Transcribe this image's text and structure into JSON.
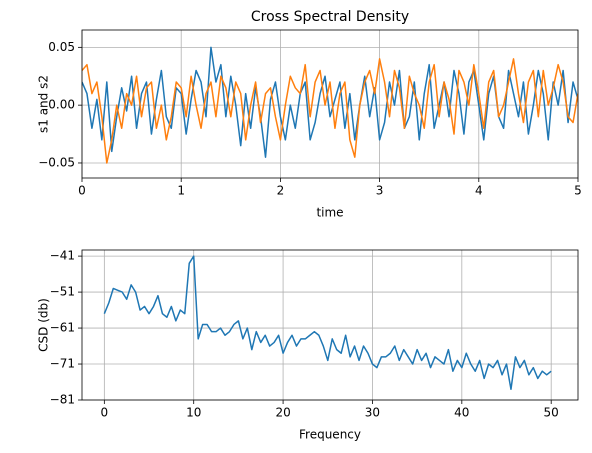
{
  "chart_data": [
    {
      "type": "line",
      "title": "Cross Spectral Density",
      "xlabel": "time",
      "ylabel": "s1 and s2",
      "x": [
        0,
        0.05,
        0.1,
        0.15,
        0.2,
        0.25,
        0.3,
        0.35,
        0.4,
        0.45,
        0.5,
        0.55,
        0.6,
        0.65,
        0.7,
        0.75,
        0.8,
        0.85,
        0.9,
        0.95,
        1,
        1.05,
        1.1,
        1.15,
        1.2,
        1.25,
        1.3,
        1.35,
        1.4,
        1.45,
        1.5,
        1.55,
        1.6,
        1.65,
        1.7,
        1.75,
        1.8,
        1.85,
        1.9,
        1.95,
        2,
        2.05,
        2.1,
        2.15,
        2.2,
        2.25,
        2.3,
        2.35,
        2.4,
        2.45,
        2.5,
        2.55,
        2.6,
        2.65,
        2.7,
        2.75,
        2.8,
        2.85,
        2.9,
        2.95,
        3,
        3.05,
        3.1,
        3.15,
        3.2,
        3.25,
        3.3,
        3.35,
        3.4,
        3.45,
        3.5,
        3.55,
        3.6,
        3.65,
        3.7,
        3.75,
        3.8,
        3.85,
        3.9,
        3.95,
        4,
        4.05,
        4.1,
        4.15,
        4.2,
        4.25,
        4.3,
        4.35,
        4.4,
        4.45,
        4.5,
        4.55,
        4.6,
        4.65,
        4.7,
        4.75,
        4.8,
        4.85,
        4.9,
        4.95,
        5
      ],
      "series": [
        {
          "color": "#1f77b4",
          "values": [
            0.02,
            0.01,
            -0.02,
            0.005,
            -0.03,
            0.02,
            -0.04,
            -0.01,
            0.015,
            -0.005,
            0.025,
            -0.02,
            0.01,
            0.02,
            -0.025,
            0.005,
            0.03,
            -0.01,
            -0.02,
            0.015,
            0.01,
            -0.025,
            0.005,
            0.03,
            0.02,
            -0.01,
            0.05,
            0.02,
            0.035,
            -0.01,
            0.025,
            0.0,
            -0.035,
            0.01,
            -0.02,
            0.015,
            -0.01,
            -0.045,
            0.005,
            0.02,
            -0.01,
            -0.03,
            0.0,
            -0.02,
            0.01,
            0.02,
            -0.03,
            -0.015,
            0.01,
            0.025,
            -0.01,
            0.005,
            0.02,
            -0.02,
            0.01,
            -0.03,
            0.0,
            0.025,
            -0.01,
            0.015,
            -0.03,
            -0.015,
            0.02,
            0.0,
            0.03,
            -0.02,
            -0.01,
            0.02,
            -0.03,
            0.01,
            0.035,
            -0.02,
            0.0,
            0.02,
            -0.01,
            0.03,
            0.01,
            -0.025,
            0.02,
            0.03,
            0.0,
            -0.03,
            0.01,
            0.025,
            -0.01,
            -0.02,
            0.03,
            0.01,
            -0.01,
            0.02,
            -0.025,
            0.0,
            0.03,
            0.01,
            -0.03,
            0.02,
            0.0,
            0.03,
            -0.015,
            0.02,
            0.005
          ]
        },
        {
          "color": "#ff7f0e",
          "values": [
            0.03,
            0.035,
            0.01,
            0.02,
            -0.01,
            -0.05,
            -0.03,
            0.0,
            -0.02,
            0.01,
            0.0,
            0.025,
            -0.01,
            0.015,
            0.02,
            -0.02,
            0.0,
            -0.03,
            -0.01,
            0.02,
            0.015,
            -0.01,
            0.025,
            0.0,
            -0.02,
            0.01,
            0.02,
            -0.01,
            0.025,
            0.015,
            -0.01,
            0.02,
            0.01,
            -0.03,
            0.0,
            0.02,
            -0.015,
            0.01,
            0.015,
            -0.01,
            -0.03,
            0.0,
            0.025,
            0.015,
            0.01,
            0.035,
            -0.01,
            0.02,
            0.03,
            0.0,
            0.02,
            -0.02,
            0.01,
            0.02,
            -0.03,
            -0.045,
            0.0,
            0.02,
            0.03,
            0.01,
            0.04,
            0.02,
            -0.01,
            0.03,
            0.015,
            -0.02,
            0.025,
            0.01,
            0.0,
            -0.02,
            0.02,
            0.035,
            -0.01,
            0.02,
            0.005,
            -0.025,
            0.03,
            0.02,
            0.0,
            0.035,
            0.01,
            -0.02,
            0.02,
            0.03,
            -0.01,
            0.0,
            0.02,
            0.04,
            0.01,
            -0.015,
            0.02,
            0.03,
            -0.01,
            0.03,
            0.0,
            0.015,
            0.035,
            0.02,
            -0.01,
            -0.015,
            0.01
          ]
        }
      ],
      "xlim": [
        0,
        5
      ],
      "xticks": [
        0,
        1,
        2,
        3,
        4,
        5
      ],
      "ylim": [
        -0.063,
        0.065
      ],
      "yticks": [
        {
          "value": -0.05,
          "label": "−0.05"
        },
        {
          "value": 0,
          "label": "0.00"
        },
        {
          "value": 0.05,
          "label": "0.05"
        }
      ],
      "grid": true
    },
    {
      "type": "line",
      "xlabel": "Frequency",
      "ylabel": "CSD (db)",
      "x": [
        0,
        0.5,
        1,
        1.5,
        2,
        2.5,
        3,
        3.5,
        4,
        4.5,
        5,
        5.5,
        6,
        6.5,
        7,
        7.5,
        8,
        8.5,
        9,
        9.5,
        10,
        10.5,
        11,
        11.5,
        12,
        12.5,
        13,
        13.5,
        14,
        14.5,
        15,
        15.5,
        16,
        16.5,
        17,
        17.5,
        18,
        18.5,
        19,
        19.5,
        20,
        20.5,
        21,
        21.5,
        22,
        22.5,
        23,
        23.5,
        24,
        24.5,
        25,
        25.5,
        26,
        26.5,
        27,
        27.5,
        28,
        28.5,
        29,
        29.5,
        30,
        30.5,
        31,
        31.5,
        32,
        32.5,
        33,
        33.5,
        34,
        34.5,
        35,
        35.5,
        36,
        36.5,
        37,
        37.5,
        38,
        38.5,
        39,
        39.5,
        40,
        40.5,
        41,
        41.5,
        42,
        42.5,
        43,
        43.5,
        44,
        44.5,
        45,
        45.5,
        46,
        46.5,
        47,
        47.5,
        48,
        48.5,
        49,
        49.5,
        50
      ],
      "series": [
        {
          "color": "#1f77b4",
          "values": [
            -57,
            -54,
            -50,
            -50.5,
            -51,
            -53,
            -49,
            -51,
            -56,
            -55,
            -57,
            -55,
            -52,
            -57,
            -58,
            -55,
            -59,
            -56,
            -57,
            -43,
            -41,
            -64,
            -60,
            -60,
            -62,
            -62,
            -61,
            -63,
            -62,
            -60,
            -59,
            -64,
            -61,
            -67,
            -62,
            -65,
            -63,
            -66,
            -65,
            -63,
            -68,
            -65,
            -63,
            -66,
            -64,
            -64,
            -63,
            -62,
            -63,
            -66,
            -70,
            -64,
            -67,
            -68,
            -63,
            -69,
            -66,
            -70,
            -66,
            -68,
            -71,
            -72,
            -69,
            -69,
            -68,
            -66,
            -70,
            -67,
            -69,
            -71,
            -67,
            -70,
            -68,
            -72,
            -69,
            -70,
            -71,
            -67,
            -73,
            -70,
            -72,
            -68,
            -71,
            -73,
            -70,
            -75,
            -71,
            -72,
            -70,
            -74,
            -71,
            -78,
            -69,
            -72,
            -70,
            -74,
            -72,
            -75,
            -73,
            -74,
            -73
          ]
        }
      ],
      "xlim": [
        -2.5,
        53
      ],
      "xticks": [
        0,
        10,
        20,
        30,
        40,
        50
      ],
      "ylim": [
        -81,
        -39.3
      ],
      "yticks": [
        {
          "value": -81,
          "label": "−81"
        },
        {
          "value": -71,
          "label": "−71"
        },
        {
          "value": -61,
          "label": "−61"
        },
        {
          "value": -51,
          "label": "−51"
        },
        {
          "value": -41,
          "label": "−41"
        }
      ],
      "grid": true
    }
  ]
}
